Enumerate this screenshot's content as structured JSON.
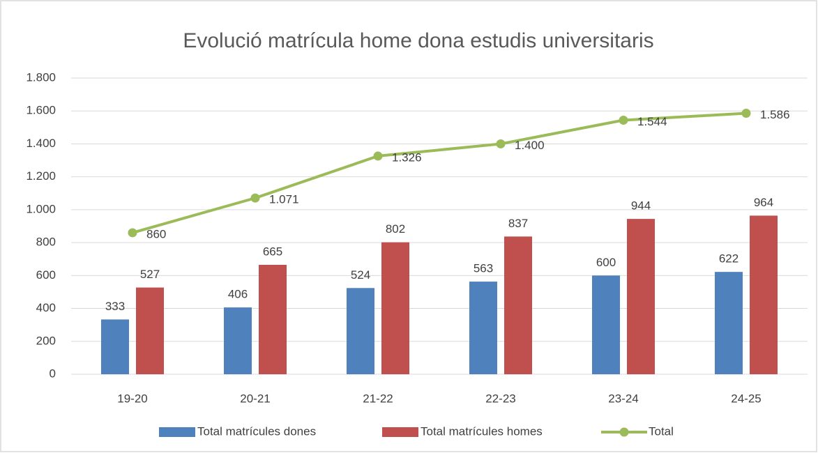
{
  "chart_data": {
    "type": "bar",
    "title": "Evolució matrícula home dona estudis universitaris",
    "categories": [
      "19-20",
      "20-21",
      "21-22",
      "22-23",
      "23-24",
      "24-25"
    ],
    "series": [
      {
        "name": "Total matrícules dones",
        "color": "#4f81bd",
        "type": "bar",
        "values": [
          333,
          406,
          524,
          563,
          600,
          622
        ]
      },
      {
        "name": "Total matrícules homes",
        "color": "#c0504d",
        "type": "bar",
        "values": [
          527,
          665,
          802,
          837,
          944,
          964
        ]
      },
      {
        "name": "Total",
        "color": "#9bbb59",
        "type": "line",
        "values": [
          860,
          1071,
          1326,
          1400,
          1544,
          1586
        ],
        "value_labels": [
          "860",
          "1.071",
          "1.326",
          "1.400",
          "1.544",
          "1.586"
        ]
      }
    ],
    "ylim": [
      0,
      1800
    ],
    "yticks": [
      0,
      200,
      400,
      600,
      800,
      {
        "value": 1000,
        "label": "1.000"
      },
      {
        "value": 1200,
        "label": "1.200"
      },
      {
        "value": 1400,
        "label": "1.400"
      },
      {
        "value": 1600,
        "label": "1.600"
      },
      {
        "value": 1800,
        "label": "1.800"
      }
    ],
    "grid": true,
    "legend": "bottom"
  }
}
